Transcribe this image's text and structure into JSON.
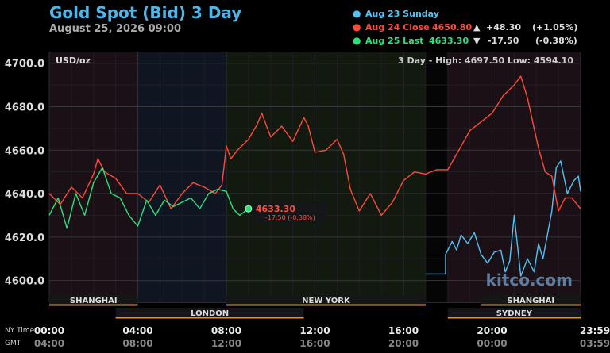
{
  "header": {
    "title": "Gold Spot (Bid) 3 Day",
    "datetime": "August 25, 2026 09:00"
  },
  "legend": [
    {
      "label": "Aug 23 Sunday",
      "price": "",
      "arrow": "",
      "change": "",
      "pct": "",
      "color": "#4fc3f7"
    },
    {
      "label": "Aug 24 Close",
      "price": "4650.80",
      "arrow": "▲",
      "change": "+48.30",
      "pct": "(+1.05%)",
      "color": "#ff4a3a"
    },
    {
      "label": "Aug 25 Last",
      "price": "4633.30",
      "arrow": "▼",
      "change": "-17.50",
      "pct": "(-0.38%)",
      "color": "#2ee07a"
    }
  ],
  "panel": {
    "unit_label": "USD/oz",
    "range_text": "3 Day - High: 4697.50   Low: 4594.10",
    "watermark": "kitco.com",
    "last_label": "4633.30",
    "last_change": "-17.50 (-0.38%)"
  },
  "sessions": [
    {
      "name": "SHANGHAI",
      "start": 0,
      "end": 4,
      "row": 1
    },
    {
      "name": "LONDON",
      "start": 3,
      "end": 11.5,
      "row": 2
    },
    {
      "name": "NEW YORK",
      "start": 8,
      "end": 17,
      "row": 1
    },
    {
      "name": "SHANGHAI",
      "start": 19.5,
      "end": 24,
      "row": 1
    },
    {
      "name": "SYDNEY",
      "start": 18,
      "end": 24,
      "row": 2
    }
  ],
  "time_axis": {
    "row_labels": [
      "NY Time",
      "GMT"
    ],
    "ny": [
      "00:00",
      "04:00",
      "08:00",
      "12:00",
      "16:00",
      "20:00",
      "23:59"
    ],
    "gmt": [
      "04:00",
      "08:00",
      "12:00",
      "16:00",
      "20:00",
      "00:00",
      "03:59"
    ]
  },
  "chart_data": {
    "type": "line",
    "ylim": [
      4590,
      4705
    ],
    "xlim": [
      0,
      24
    ],
    "yticks": [
      "4600.0",
      "4620.0",
      "4640.0",
      "4660.0",
      "4680.0",
      "4700.0"
    ],
    "series": [
      {
        "name": "Aug 23 Sunday",
        "color": "#4fc3f7",
        "x": [
          17,
          17.9,
          17.9,
          18.2,
          18.4,
          18.6,
          18.9,
          19.2,
          19.5,
          19.8,
          20.1,
          20.4,
          20.6,
          20.8,
          21.0,
          21.3,
          21.6,
          21.9,
          22.1,
          22.3,
          22.5,
          22.7,
          22.9,
          23.1,
          23.4,
          23.7,
          23.9,
          24
        ],
        "y": [
          4603,
          4603,
          4612,
          4618,
          4614,
          4621,
          4617,
          4622,
          4612,
          4608,
          4613,
          4614,
          4604,
          4609,
          4630,
          4602,
          4610,
          4604,
          4617,
          4610,
          4621,
          4632,
          4652,
          4655,
          4640,
          4646,
          4648,
          4641
        ]
      },
      {
        "name": "Aug 24 Close",
        "color": "#ff4a3a",
        "x": [
          0,
          0.5,
          1.0,
          1.5,
          2.0,
          2.2,
          2.5,
          3.0,
          3.5,
          4.0,
          4.5,
          5.0,
          5.5,
          6.0,
          6.5,
          7.0,
          7.5,
          7.8,
          8.0,
          8.2,
          8.5,
          9.0,
          9.4,
          9.6,
          10.0,
          10.5,
          11.0,
          11.5,
          11.7,
          12.0,
          12.5,
          13.0,
          13.3,
          13.6,
          14.0,
          14.5,
          15.0,
          15.5,
          16.0,
          16.5,
          17,
          17.5,
          18,
          18.5,
          19.0,
          19.5,
          20.0,
          20.5,
          21.0,
          21.3,
          21.6,
          21.9,
          22.1,
          22.4,
          22.7,
          23.0,
          23.3,
          23.6,
          24
        ],
        "y": [
          4640,
          4635,
          4643,
          4638,
          4649,
          4656,
          4650,
          4647,
          4640,
          4640,
          4636,
          4644,
          4633,
          4640,
          4645,
          4643,
          4640,
          4644,
          4662,
          4656,
          4660,
          4665,
          4672,
          4677,
          4666,
          4671,
          4664,
          4675,
          4671,
          4659,
          4660,
          4665,
          4658,
          4642,
          4632,
          4640,
          4630,
          4636,
          4646,
          4650,
          4649,
          4651,
          4651,
          4660,
          4669,
          4673,
          4677,
          4685,
          4690,
          4694,
          4684,
          4670,
          4661,
          4650,
          4648,
          4632,
          4638,
          4638,
          4633
        ]
      },
      {
        "name": "Aug 25 Last",
        "color": "#2ee07a",
        "x": [
          0,
          0.4,
          0.8,
          1.2,
          1.6,
          2.0,
          2.4,
          2.8,
          3.2,
          3.6,
          4.0,
          4.4,
          4.8,
          5.2,
          5.6,
          6.0,
          6.4,
          6.8,
          7.2,
          7.6,
          8.0,
          8.3,
          8.6,
          9.0
        ],
        "y": [
          4630,
          4638,
          4624,
          4640,
          4630,
          4645,
          4652,
          4640,
          4638,
          4630,
          4625,
          4637,
          4630,
          4637,
          4634,
          4636,
          4638,
          4633,
          4640,
          4642,
          4641,
          4633,
          4630,
          4633
        ]
      }
    ]
  }
}
